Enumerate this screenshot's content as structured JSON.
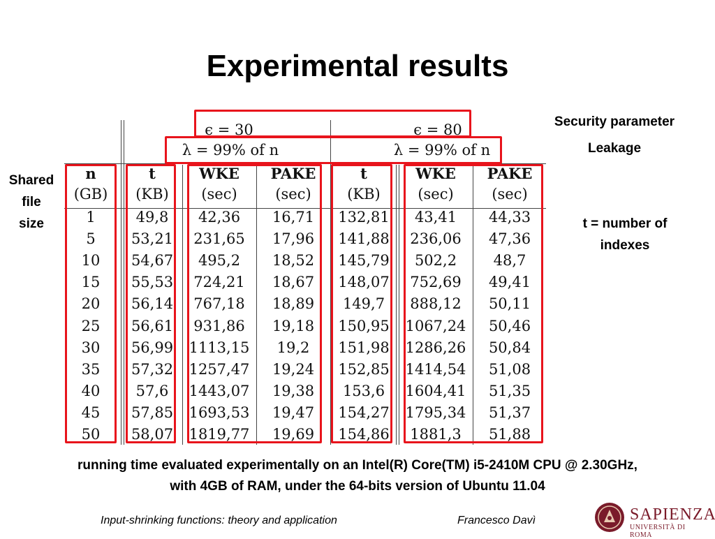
{
  "title": "Experimental results",
  "table": {
    "epsilon_left": "ϵ = 30",
    "epsilon_right": "ϵ = 80",
    "lambda_left": "λ = 99% of n",
    "lambda_right": "λ = 99% of n",
    "headers": [
      {
        "name": "n",
        "unit": "(GB)"
      },
      {
        "name": "t",
        "unit": "(KB)"
      },
      {
        "name": "WKE",
        "unit": "(sec)"
      },
      {
        "name": "PAKE",
        "unit": "(sec)"
      },
      {
        "name": "t",
        "unit": "(KB)"
      },
      {
        "name": "WKE",
        "unit": "(sec)"
      },
      {
        "name": "PAKE",
        "unit": "(sec)"
      }
    ],
    "rows": [
      [
        "1",
        "49,8",
        "42,36",
        "16,71",
        "132,81",
        "43,41",
        "44,33"
      ],
      [
        "5",
        "53,21",
        "231,65",
        "17,96",
        "141,88",
        "236,06",
        "47,36"
      ],
      [
        "10",
        "54,67",
        "495,2",
        "18,52",
        "145,79",
        "502,2",
        "48,7"
      ],
      [
        "15",
        "55,53",
        "724,21",
        "18,67",
        "148,07",
        "752,69",
        "49,41"
      ],
      [
        "20",
        "56,14",
        "767,18",
        "18,89",
        "149,7",
        "888,12",
        "50,11"
      ],
      [
        "25",
        "56,61",
        "931,86",
        "19,18",
        "150,95",
        "1067,24",
        "50,46"
      ],
      [
        "30",
        "56,99",
        "1113,15",
        "19,2",
        "151,98",
        "1286,26",
        "50,84"
      ],
      [
        "35",
        "57,32",
        "1257,47",
        "19,24",
        "152,85",
        "1414,54",
        "51,08"
      ],
      [
        "40",
        "57,6",
        "1443,07",
        "19,38",
        "153,6",
        "1604,41",
        "51,35"
      ],
      [
        "45",
        "57,85",
        "1693,53",
        "19,47",
        "154,27",
        "1795,34",
        "51,37"
      ],
      [
        "50",
        "58,07",
        "1819,77",
        "19,69",
        "154,86",
        "1881,3",
        "51,88"
      ]
    ]
  },
  "annotations": {
    "security_parameter": "Security parameter",
    "leakage": "Leakage",
    "shared_file_size": [
      "Shared",
      "file",
      "size"
    ],
    "t_number_line1": "t = number of",
    "t_number_line2": "indexes"
  },
  "caption": {
    "line1": "running time evaluated experimentally on an Intel(R) Core(TM) i5-2410M CPU @ 2.30GHz,",
    "line2": "with 4GB of RAM, under the 64-bits version of Ubuntu 11.04"
  },
  "footer": {
    "left": "Input-shrinking functions: theory and application",
    "right": "Francesco Davì"
  },
  "logo": {
    "name": "SAPIENZA",
    "sub": "UNIVERSITÀ DI ROMA"
  },
  "colors": {
    "highlight": "#e8141c",
    "brand": "#7a1b2a"
  }
}
